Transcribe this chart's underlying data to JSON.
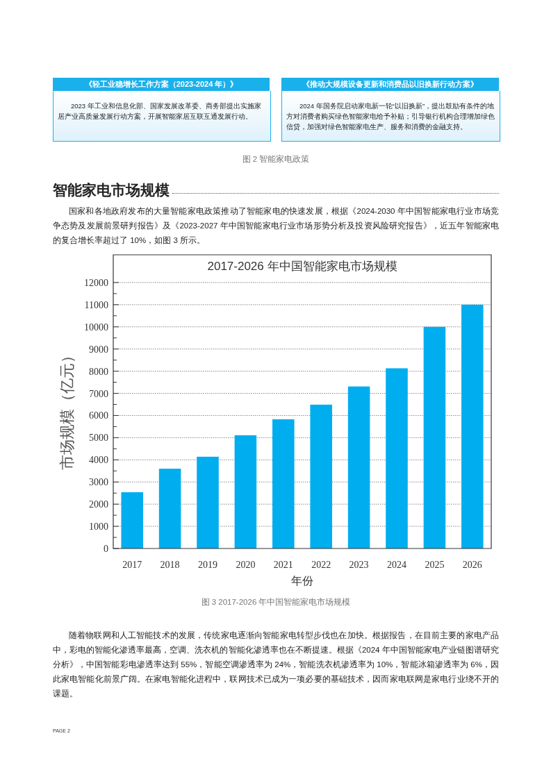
{
  "chart_data": {
    "type": "bar",
    "title": "2017-2026 年中国智能家电市场规模",
    "xlabel": "年份",
    "ylabel": "市场规模（亿元）",
    "categories": [
      "2017",
      "2018",
      "2019",
      "2020",
      "2021",
      "2022",
      "2023",
      "2024",
      "2025",
      "2026"
    ],
    "values": [
      2540,
      3600,
      4140,
      5110,
      5830,
      6490,
      7310,
      8130,
      10000,
      11000
    ],
    "color": "#00aeef",
    "ylim": [
      0,
      13250
    ],
    "yticks": [
      0,
      {
        "value": 500,
        "label": null
      },
      1000,
      {
        "value": 1500,
        "label": null
      },
      2000,
      {
        "value": 2500,
        "label": null
      },
      3000,
      {
        "value": 3500,
        "label": null
      },
      4000,
      {
        "value": 4500,
        "label": null
      },
      5000,
      {
        "value": 5500,
        "label": null
      },
      6000,
      {
        "value": 6500,
        "label": null
      },
      7000,
      {
        "value": 7500,
        "label": null
      },
      8000,
      {
        "value": 8500,
        "label": null
      },
      9000,
      {
        "value": 9500,
        "label": null
      },
      10000,
      {
        "value": 10500,
        "label": null
      },
      11000,
      {
        "value": 11500,
        "label": null
      },
      12000
    ],
    "grid": "y",
    "annotations": [
      "《轻工业稳增长工作方案（2023-2024 年）》",
      "2023 年工业和信息化部、国家发展改革委、商务部提出实施家居产业高质量发展行动方案，开展智能家居互联互通发展行动。",
      "《推动大规模设备更新和消费品以旧换新行动方案》",
      "2024 年国务院启动家电新一轮“以旧换新”，提出鼓励有条件的地方对消费者购买绿色智能家电给予补贴；引导银行机构合理增加绿色信贷，加强对绿色智能家电生产、服务和消费的金融支持。",
      "图 2 智能家电政策",
      "智能家电市场规模",
      "国家和各地政府发布的大量智能家电政策推动了智能家电的快速发展，根据《2024-2030 年中国智能家电行业市场竞争态势及发展前景研判报告》及《2023-2027 年中国智能家电行业市场形势分析及投资风险研究报告》，近五年智能家电的复合增长率超过了 10%，如图 3 所示。",
      "图 3  2017-2026 年中国智能家电市场规模",
      "随着物联网和人工智能技术的发展，传统家电逐渐向智能家电转型步伐也在加快。根据报告，在目前主要的家电产品中，彩电的智能化渗透率最高，空调、洗衣机的智能化渗透率也在不断提速。根据《2024 年中国智能家电产业链图谱研究分析》，中国智能彩电渗透率达到 55%，智能空调渗透率为 24%，智能洗衣机渗透率为 10%，智能冰箱渗透率为 6%，因此家电智能化前景广阔。在家电智能化进程中，联网技术已成为一项必要的基础技术，因而家电联网是家电行业绕不开的课题。",
      "PAGE 2"
    ]
  }
}
